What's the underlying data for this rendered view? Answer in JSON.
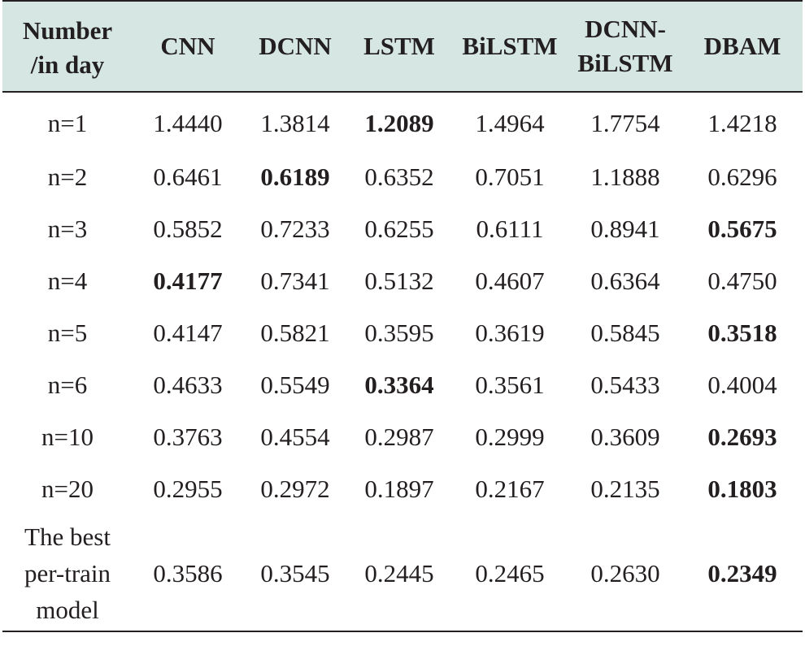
{
  "table": {
    "headers": [
      {
        "line1": "Number",
        "line2": "/in day"
      },
      {
        "line1": "CNN",
        "line2": ""
      },
      {
        "line1": "DCNN",
        "line2": ""
      },
      {
        "line1": "LSTM",
        "line2": ""
      },
      {
        "line1": "BiLSTM",
        "line2": ""
      },
      {
        "line1": "DCNN-",
        "line2": "BiLSTM"
      },
      {
        "line1": "DBAM",
        "line2": ""
      }
    ],
    "rows": [
      {
        "label": "n=1",
        "values": [
          "1.4440",
          "1.3814",
          "1.2089",
          "1.4964",
          "1.7754",
          "1.4218"
        ],
        "best_index": 2
      },
      {
        "label": "n=2",
        "values": [
          "0.6461",
          "0.6189",
          "0.6352",
          "0.7051",
          "1.1888",
          "0.6296"
        ],
        "best_index": 1
      },
      {
        "label": "n=3",
        "values": [
          "0.5852",
          "0.7233",
          "0.6255",
          "0.6111",
          "0.8941",
          "0.5675"
        ],
        "best_index": 5
      },
      {
        "label": "n=4",
        "values": [
          "0.4177",
          "0.7341",
          "0.5132",
          "0.4607",
          "0.6364",
          "0.4750"
        ],
        "best_index": 0
      },
      {
        "label": "n=5",
        "values": [
          "0.4147",
          "0.5821",
          "0.3595",
          "0.3619",
          "0.5845",
          "0.3518"
        ],
        "best_index": 5
      },
      {
        "label": "n=6",
        "values": [
          "0.4633",
          "0.5549",
          "0.3364",
          "0.3561",
          "0.5433",
          "0.4004"
        ],
        "best_index": 2
      },
      {
        "label": "n=10",
        "values": [
          "0.3763",
          "0.4554",
          "0.2987",
          "0.2999",
          "0.3609",
          "0.2693"
        ],
        "best_index": 5
      },
      {
        "label": "n=20",
        "values": [
          "0.2955",
          "0.2972",
          "0.1897",
          "0.2167",
          "0.2135",
          "0.1803"
        ],
        "best_index": 5
      }
    ],
    "last_row": {
      "label_lines": [
        "The best",
        "per-train",
        "model"
      ],
      "values": [
        "0.3586",
        "0.3545",
        "0.2445",
        "0.2465",
        "0.2630",
        "0.2349"
      ],
      "best_index": 5
    }
  }
}
